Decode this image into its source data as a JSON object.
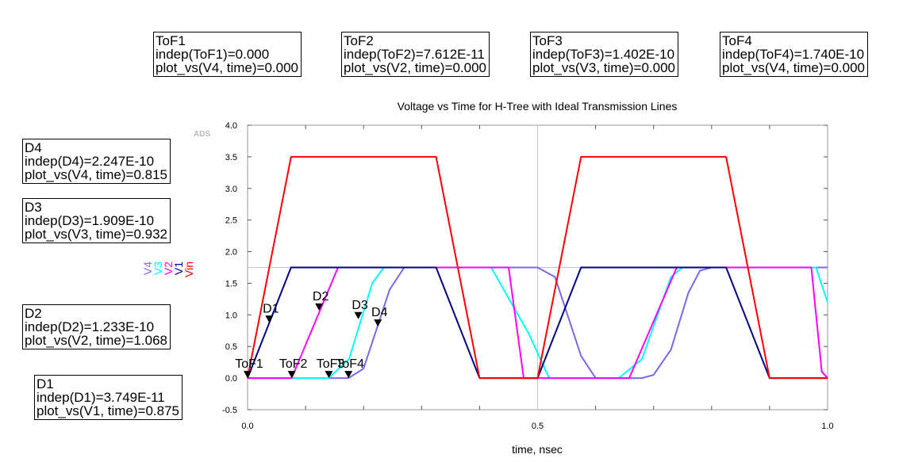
{
  "markers": {
    "tof1": {
      "name": "ToF1",
      "indep": "indep(ToF1)=0.000",
      "val": "plot_vs(V4, time)=0.000"
    },
    "tof2": {
      "name": "ToF2",
      "indep": "indep(ToF2)=7.612E-11",
      "val": "plot_vs(V2, time)=0.000"
    },
    "tof3": {
      "name": "ToF3",
      "indep": "indep(ToF3)=1.402E-10",
      "val": "plot_vs(V3, time)=0.000"
    },
    "tof4": {
      "name": "ToF4",
      "indep": "indep(ToF4)=1.740E-10",
      "val": "plot_vs(V4, time)=0.000"
    },
    "d4": {
      "name": "D4",
      "indep": "indep(D4)=2.247E-10",
      "val": "plot_vs(V4, time)=0.815"
    },
    "d3": {
      "name": "D3",
      "indep": "indep(D3)=1.909E-10",
      "val": "plot_vs(V3, time)=0.932"
    },
    "d2": {
      "name": "D2",
      "indep": "indep(D2)=1.233E-10",
      "val": "plot_vs(V2, time)=1.068"
    },
    "d1": {
      "name": "D1",
      "indep": "indep(D1)=3.749E-11",
      "val": "plot_vs(V1, time)=0.875"
    }
  },
  "ads_logo": "ADS",
  "chart_data": {
    "type": "line",
    "title": "Voltage vs Time for H-Tree with Ideal Transmission Lines",
    "xlabel": "time, nsec",
    "ylabel": "",
    "xlim": [
      0.0,
      1.0
    ],
    "ylim": [
      -0.5,
      4.0
    ],
    "x_ticks": [
      0.0,
      0.5,
      1.0
    ],
    "x_tick_labels": [
      "0.0",
      "0.5",
      "1.0"
    ],
    "x_minor_ticks": [
      0.1,
      0.2,
      0.3,
      0.4,
      0.6,
      0.7,
      0.8,
      0.9
    ],
    "y_ticks": [
      -0.5,
      0.0,
      0.5,
      1.0,
      1.5,
      2.0,
      2.5,
      3.0,
      3.5,
      4.0
    ],
    "y_tick_labels": [
      "-0.5",
      "0.0",
      "0.5",
      "1.0",
      "1.5",
      "2.0",
      "2.5",
      "3.0",
      "3.5",
      "4.0"
    ],
    "grid": "center-lines",
    "legend_position": "left-vertical",
    "series": [
      {
        "name": "Vin",
        "color": "#ff0000",
        "x": [
          0.0,
          0.075,
          0.325,
          0.4,
          0.5,
          0.575,
          0.825,
          0.9,
          1.0
        ],
        "y": [
          0.0,
          3.5,
          3.5,
          0.0,
          0.0,
          3.5,
          3.5,
          0.0,
          0.0
        ]
      },
      {
        "name": "V1",
        "color": "#00008b",
        "x": [
          0.0,
          0.075,
          0.325,
          0.4,
          0.5,
          0.575,
          0.825,
          0.9,
          1.0
        ],
        "y": [
          0.0,
          1.75,
          1.75,
          0.0,
          0.0,
          1.75,
          1.75,
          0.0,
          0.0
        ]
      },
      {
        "name": "V2",
        "color": "#ff00ff",
        "x": [
          0.0,
          0.076,
          0.156,
          0.45,
          0.476,
          0.5,
          0.658,
          0.74,
          0.972,
          0.99,
          1.0
        ],
        "y": [
          0.0,
          0.0,
          1.75,
          1.75,
          0.0,
          0.0,
          0.0,
          1.75,
          1.75,
          0.1,
          0.0
        ]
      },
      {
        "name": "V3",
        "color": "#00ffff",
        "x": [
          0.0,
          0.14,
          0.175,
          0.215,
          0.235,
          0.42,
          0.485,
          0.52,
          0.64,
          0.68,
          0.73,
          0.75,
          0.91,
          0.98,
          1.0
        ],
        "y": [
          0.0,
          0.0,
          0.3,
          1.5,
          1.75,
          1.75,
          0.7,
          0.0,
          0.0,
          0.3,
          1.6,
          1.75,
          1.75,
          1.75,
          1.2
        ]
      },
      {
        "name": "V4",
        "color": "#7b68ee",
        "x": [
          0.0,
          0.174,
          0.2,
          0.245,
          0.27,
          0.5,
          0.53,
          0.575,
          0.6,
          0.68,
          0.7,
          0.73,
          0.76,
          0.78,
          0.8,
          1.0
        ],
        "y": [
          0.0,
          0.0,
          0.15,
          1.4,
          1.75,
          1.75,
          1.6,
          0.35,
          0.0,
          0.0,
          0.05,
          0.45,
          1.35,
          1.7,
          1.75,
          1.75
        ]
      }
    ],
    "point_markers": [
      {
        "label": "ToF1",
        "x": 0.0,
        "y": 0.0
      },
      {
        "label": "ToF2",
        "x": 0.07612,
        "y": 0.0
      },
      {
        "label": "ToF3",
        "x": 0.1402,
        "y": 0.0
      },
      {
        "label": "ToF4",
        "x": 0.174,
        "y": 0.0
      },
      {
        "label": "D1",
        "x": 0.03749,
        "y": 0.875
      },
      {
        "label": "D2",
        "x": 0.1233,
        "y": 1.068
      },
      {
        "label": "D3",
        "x": 0.1909,
        "y": 0.932
      },
      {
        "label": "D4",
        "x": 0.2247,
        "y": 0.815
      }
    ]
  }
}
